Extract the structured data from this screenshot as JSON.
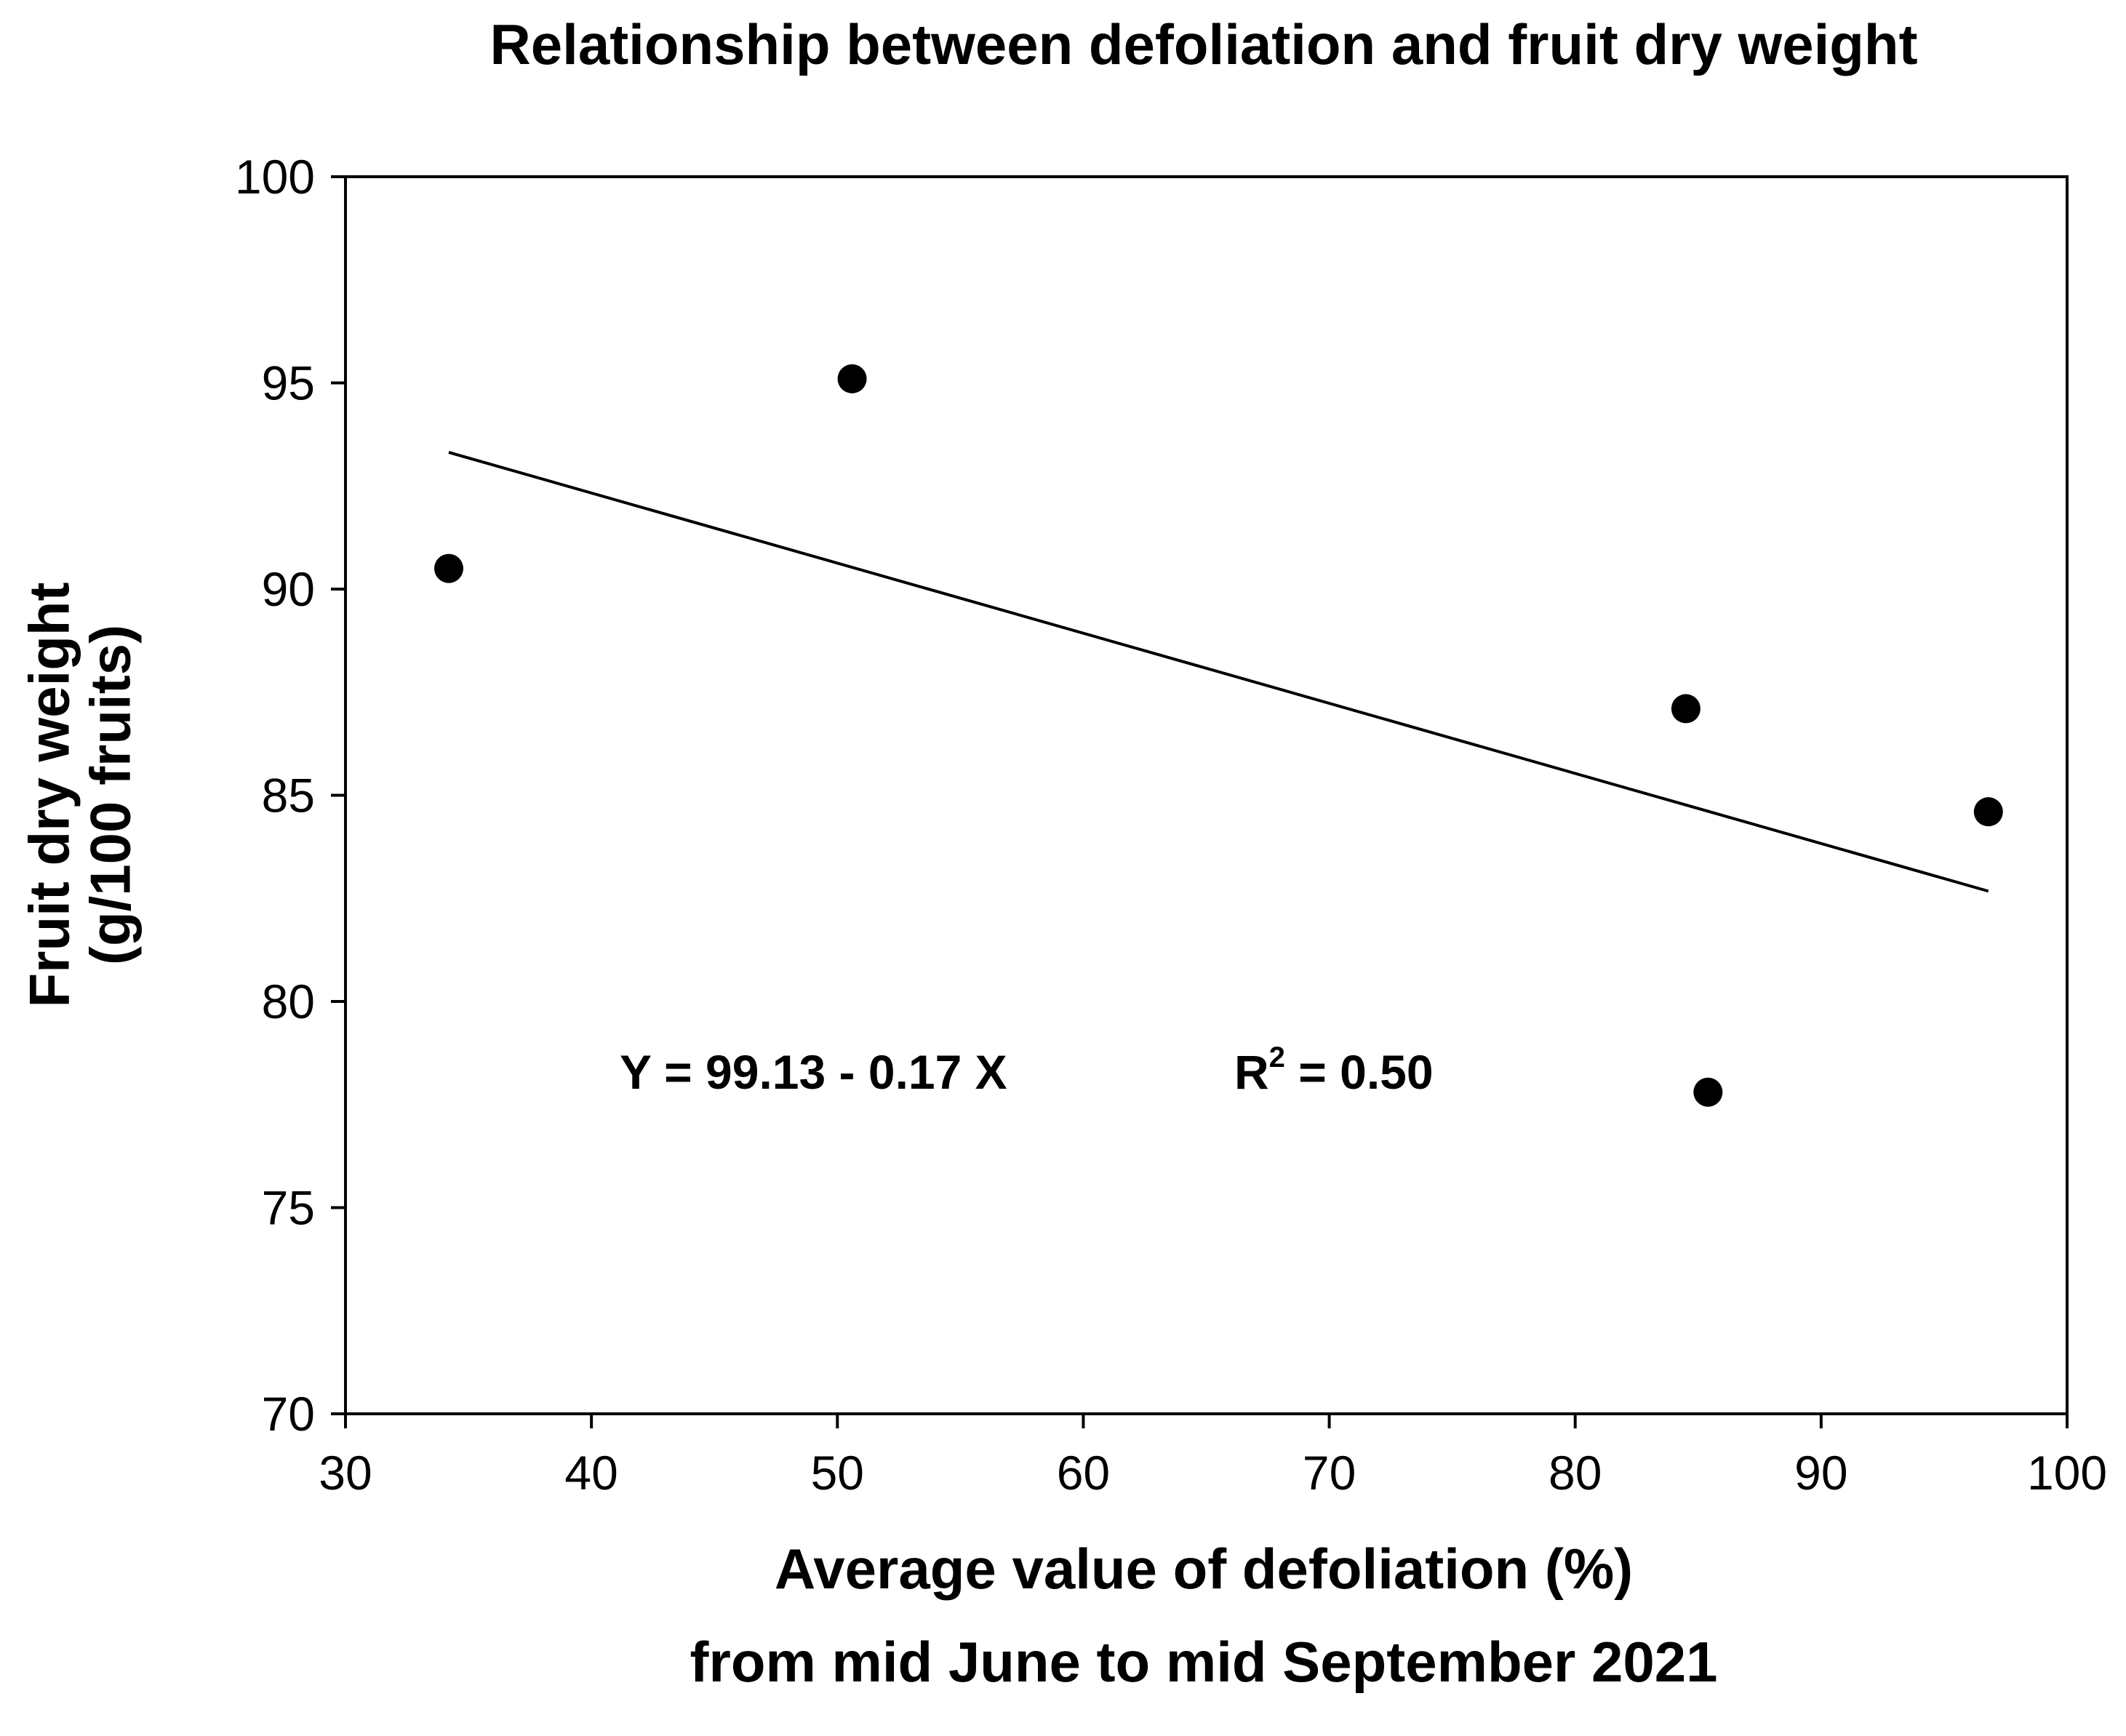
{
  "chart_data": {
    "type": "scatter",
    "title": "Relationship between defoliation and fruit dry weight",
    "xlabel_lines": [
      "Average value of defoliation (%)",
      "from mid June to mid September 2021"
    ],
    "ylabel_lines": [
      "Fruit dry weight",
      "(g/100 fruits)"
    ],
    "xlim": [
      30,
      100
    ],
    "ylim": [
      70,
      100
    ],
    "xticks": [
      30,
      40,
      50,
      60,
      70,
      80,
      90,
      100
    ],
    "yticks": [
      70,
      75,
      80,
      85,
      90,
      95,
      100
    ],
    "grid": false,
    "series": [
      {
        "name": "observations",
        "x": [
          34.2,
          50.6,
          84.5,
          85.4,
          96.8
        ],
        "y": [
          90.5,
          95.1,
          87.1,
          77.8,
          84.6
        ]
      }
    ],
    "trendline": {
      "intercept": 99.13,
      "slope": -0.17,
      "x_range": [
        34.2,
        96.8
      ]
    },
    "annotations": {
      "equation": "Y = 99.13 - 0.17 X",
      "r2_prefix": "R",
      "r2_superscript": "2",
      "r2_value": " = 0.50"
    }
  }
}
